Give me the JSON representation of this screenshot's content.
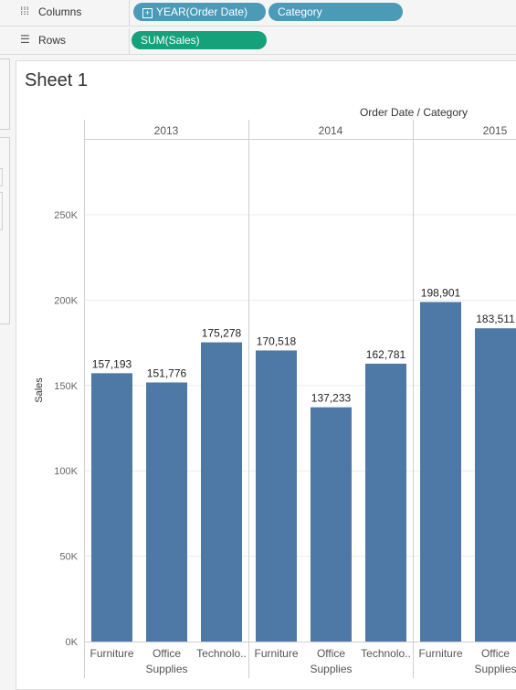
{
  "shelves": {
    "columns": {
      "label": "Columns",
      "icon": "columns-icon",
      "pills": [
        "YEAR(Order Date)",
        "Category"
      ]
    },
    "rows": {
      "label": "Rows",
      "icon": "rows-icon",
      "pills": [
        "SUM(Sales)"
      ]
    }
  },
  "sheet": {
    "title": "Sheet 1"
  },
  "colors": {
    "bar": "#4e79a7",
    "dimension_pill": "#4b9bb8",
    "measure_pill": "#15a17a"
  },
  "chart_data": {
    "type": "bar",
    "column_header": "Order Date / Category",
    "ylabel": "Sales",
    "ylim": [
      0,
      290000
    ],
    "yticks": [
      0,
      50000,
      100000,
      150000,
      200000,
      250000
    ],
    "ytick_labels": [
      "0K",
      "50K",
      "100K",
      "150K",
      "200K",
      "250K"
    ],
    "grid": true,
    "groups": [
      {
        "year": "2013",
        "categories": [
          "Furniture",
          "Office Supplies",
          "Technolo.."
        ],
        "values": [
          157193,
          151776,
          175278
        ],
        "value_labels": [
          "157,193",
          "151,776",
          "175,278"
        ]
      },
      {
        "year": "2014",
        "categories": [
          "Furniture",
          "Office Supplies",
          "Technolo.."
        ],
        "values": [
          170518,
          137233,
          162781
        ],
        "value_labels": [
          "170,518",
          "137,233",
          "162,781"
        ]
      },
      {
        "year": "2015",
        "categories": [
          "Furniture",
          "Office Supplies"
        ],
        "values": [
          198901,
          183511
        ],
        "value_labels": [
          "198,901",
          "183,511"
        ]
      }
    ]
  }
}
